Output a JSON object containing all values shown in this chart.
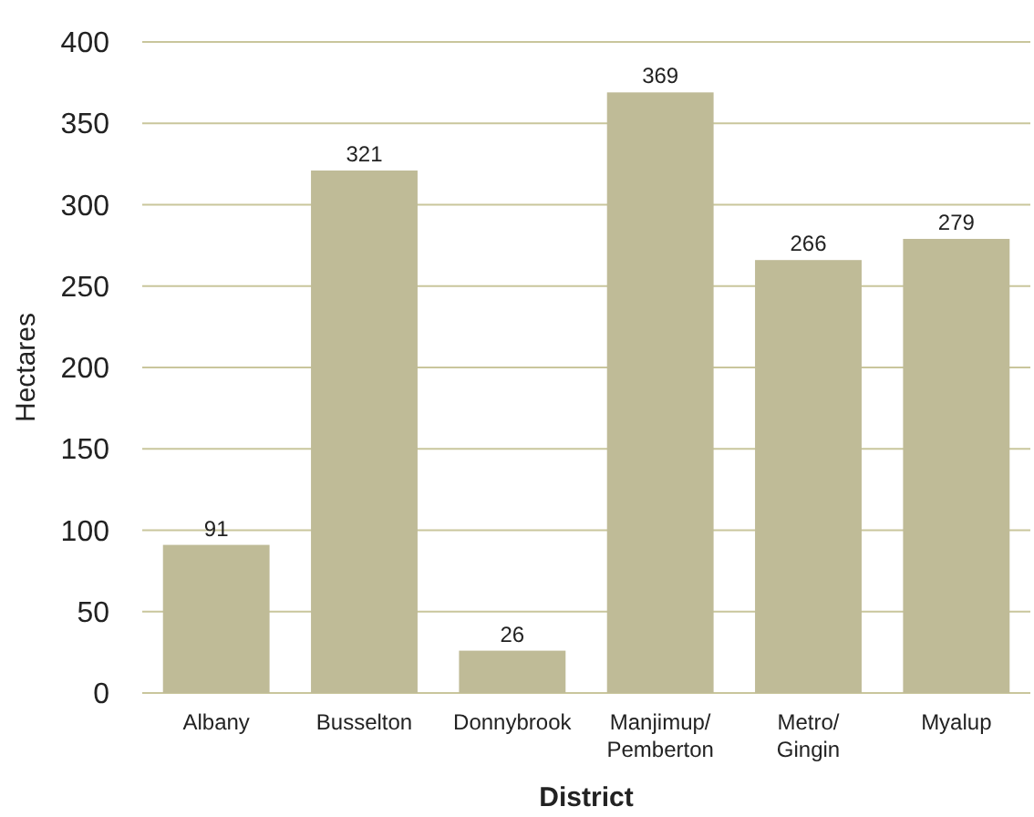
{
  "chart_data": {
    "type": "bar",
    "xlabel": "District",
    "ylabel": "Hectares",
    "categories": [
      "Albany",
      "Busselton",
      "Donnybrook",
      "Manjimup/Pemberton",
      "Metro/Gingin",
      "Myalup"
    ],
    "values": [
      91,
      321,
      26,
      369,
      266,
      279
    ],
    "color": "#bfbb97",
    "ylim": [
      0,
      400
    ],
    "yticks": [
      0,
      50,
      100,
      150,
      200,
      250,
      300,
      350,
      400
    ],
    "grid": "y",
    "data_labels": true
  }
}
